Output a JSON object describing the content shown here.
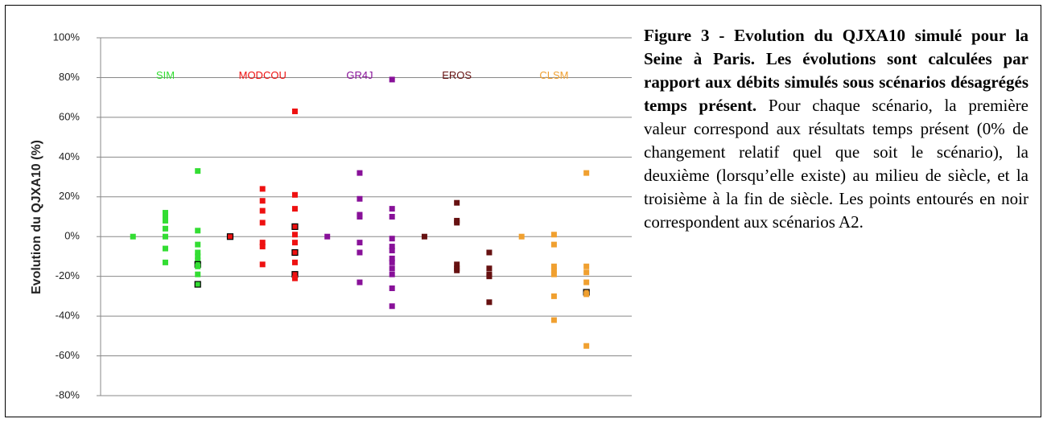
{
  "chart_data": {
    "type": "scatter",
    "ylabel": "Evolution du QJXA10 (%)",
    "ylim": [
      -80,
      100
    ],
    "yticks": [
      {
        "value": -80,
        "label": "-80%"
      },
      {
        "value": -60,
        "label": "-60%"
      },
      {
        "value": -40,
        "label": "-40%"
      },
      {
        "value": -20,
        "label": "-20%"
      },
      {
        "value": 0,
        "label": "0%"
      },
      {
        "value": 20,
        "label": "20%"
      },
      {
        "value": 40,
        "label": "40%"
      },
      {
        "value": 60,
        "label": "60%"
      },
      {
        "value": 80,
        "label": "80%"
      },
      {
        "value": 100,
        "label": "100%"
      }
    ],
    "xlim": [
      0,
      16.4
    ],
    "grid": true,
    "series": [
      {
        "name": "SIM",
        "color": "#33dd33",
        "x": [
          1,
          2,
          2,
          2,
          2,
          2,
          2,
          2,
          3,
          3,
          3,
          3,
          3,
          3,
          3,
          3,
          3,
          3
        ],
        "values": [
          0,
          12,
          10,
          8,
          4,
          0,
          -6,
          -13,
          33,
          3,
          -4,
          -8,
          -10,
          -12,
          -14,
          -15,
          -19,
          -24
        ],
        "outlined": [
          false,
          false,
          false,
          false,
          false,
          false,
          false,
          false,
          false,
          false,
          false,
          false,
          false,
          false,
          true,
          false,
          false,
          true
        ]
      },
      {
        "name": "MODCOU",
        "color": "#ee1111",
        "x": [
          4,
          5,
          5,
          5,
          5,
          5,
          5,
          5,
          6,
          6,
          6,
          6,
          6,
          6,
          6,
          6,
          6,
          6
        ],
        "values": [
          0,
          24,
          18,
          13,
          7,
          -3,
          -5,
          -14,
          63,
          21,
          14,
          5,
          1,
          -3,
          -8,
          -13,
          -19,
          -21
        ],
        "outlined": [
          true,
          false,
          false,
          false,
          false,
          false,
          false,
          false,
          false,
          false,
          false,
          true,
          false,
          false,
          true,
          false,
          true,
          false
        ]
      },
      {
        "name": "GR4J",
        "color": "#881199",
        "x": [
          7,
          8,
          8,
          8,
          8,
          8,
          8,
          8,
          9,
          9,
          9,
          9,
          9,
          9,
          9,
          9,
          9,
          9,
          9,
          9
        ],
        "values": [
          0,
          32,
          19,
          11,
          10,
          -3,
          -8,
          -23,
          79,
          14,
          10,
          -1,
          -5,
          -7,
          -11,
          -13,
          -16,
          -19,
          -26,
          -35
        ],
        "outlined": [
          false,
          false,
          false,
          false,
          false,
          false,
          false,
          false,
          false,
          false,
          false,
          false,
          false,
          false,
          false,
          false,
          false,
          false,
          false,
          false
        ]
      },
      {
        "name": "EROS",
        "color": "#661111",
        "x": [
          10,
          11,
          11,
          11,
          11,
          11,
          11,
          12,
          12,
          12,
          12,
          12
        ],
        "values": [
          0,
          17,
          8,
          7,
          -14,
          -16,
          -17,
          -8,
          -16,
          -19,
          -20,
          -33
        ],
        "outlined": [
          false,
          false,
          false,
          false,
          false,
          false,
          false,
          false,
          false,
          false,
          false,
          false
        ]
      },
      {
        "name": "CLSM",
        "color": "#f0a030",
        "x": [
          13,
          14,
          14,
          14,
          14,
          14,
          14,
          14,
          15,
          15,
          15,
          15,
          15,
          15,
          15
        ],
        "values": [
          0,
          1,
          -4,
          -15,
          -17,
          -19,
          -30,
          -42,
          32,
          -15,
          -18,
          -23,
          -28,
          -29,
          -55
        ],
        "outlined": [
          false,
          false,
          false,
          false,
          false,
          false,
          false,
          false,
          false,
          false,
          false,
          false,
          true,
          false,
          false
        ]
      }
    ]
  },
  "caption": {
    "bold": "Figure 3 - Evolution du QJXA10 simulé pour la Seine à Paris. Les évolutions sont calculées par rapport aux débits simulés sous scénarios désagrégés temps présent.",
    "text": " Pour chaque scénario, la première valeur correspond aux résultats temps présent (0% de changement relatif quel que soit le scénario), la deuxième (lorsqu’elle existe) au milieu de siècle, et la troisième à la fin de siècle. Les points entourés en noir correspondent aux scénarios A2."
  }
}
